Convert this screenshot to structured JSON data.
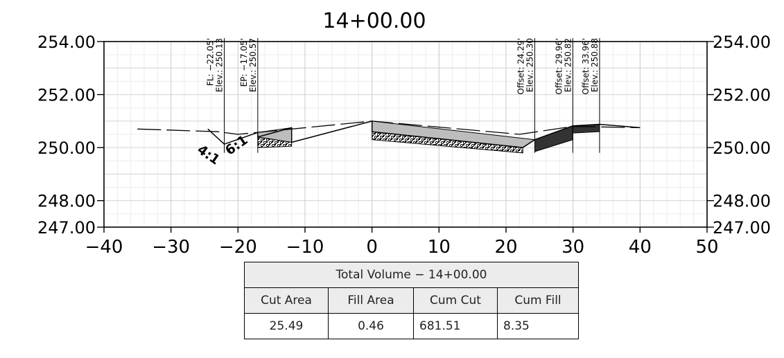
{
  "chart_data": {
    "type": "line",
    "title": "14+00.00",
    "xlabel": "",
    "ylabel": "",
    "xlim": [
      -40,
      50
    ],
    "ylim": [
      247,
      254
    ],
    "x_ticks": [
      -40,
      -30,
      -20,
      -10,
      0,
      10,
      20,
      30,
      40,
      50
    ],
    "x_tick_labels": [
      "−40",
      "−30",
      "−20",
      "−10",
      "0",
      "10",
      "20",
      "30",
      "40",
      "50"
    ],
    "y_ticks": [
      247,
      248,
      250,
      252,
      254
    ],
    "y_tick_labels": [
      "247.00",
      "248.00",
      "250.00",
      "252.00",
      "254.00"
    ],
    "grid": true,
    "series": [
      {
        "role": "existing-ground",
        "x": [
          -35,
          -23,
          -20,
          0,
          22,
          30,
          40
        ],
        "y": [
          250.7,
          250.6,
          250.5,
          251.0,
          250.5,
          250.8,
          250.75
        ]
      },
      {
        "role": "proposed-finished-grade",
        "x": [
          -24.5,
          -22.05,
          -17.05,
          -17.05,
          -12,
          -12,
          0,
          0,
          22.5,
          24.29,
          29.96,
          33.96,
          40
        ],
        "y": [
          250.7,
          250.13,
          250.57,
          250.4,
          250.75,
          250.2,
          251.0,
          250.6,
          250.0,
          250.3,
          250.82,
          250.88,
          250.75
        ]
      }
    ],
    "annotations": [
      {
        "x": -22.05,
        "lines": [
          "FL: −22.05'",
          "Elev.: 250.13"
        ]
      },
      {
        "x": -17.05,
        "lines": [
          "EP: −17.05'",
          "Elev.: 250.57"
        ]
      },
      {
        "x": 24.29,
        "lines": [
          "Offset: 24.29'",
          "Elev.: 250.30"
        ]
      },
      {
        "x": 29.96,
        "lines": [
          "Offset: 29.96'",
          "Elev.: 250.82"
        ]
      },
      {
        "x": 33.96,
        "lines": [
          "Offset: 33.96'",
          "Elev.: 250.88"
        ]
      }
    ],
    "slope_labels": [
      "4:1",
      "6:1"
    ]
  },
  "volume_table": {
    "title": "Total Volume − 14+00.00",
    "headers": [
      "Cut Area",
      "Fill Area",
      "Cum Cut",
      "Cum Fill"
    ],
    "values": [
      "25.49",
      "0.46",
      "681.51",
      "8.35"
    ]
  }
}
